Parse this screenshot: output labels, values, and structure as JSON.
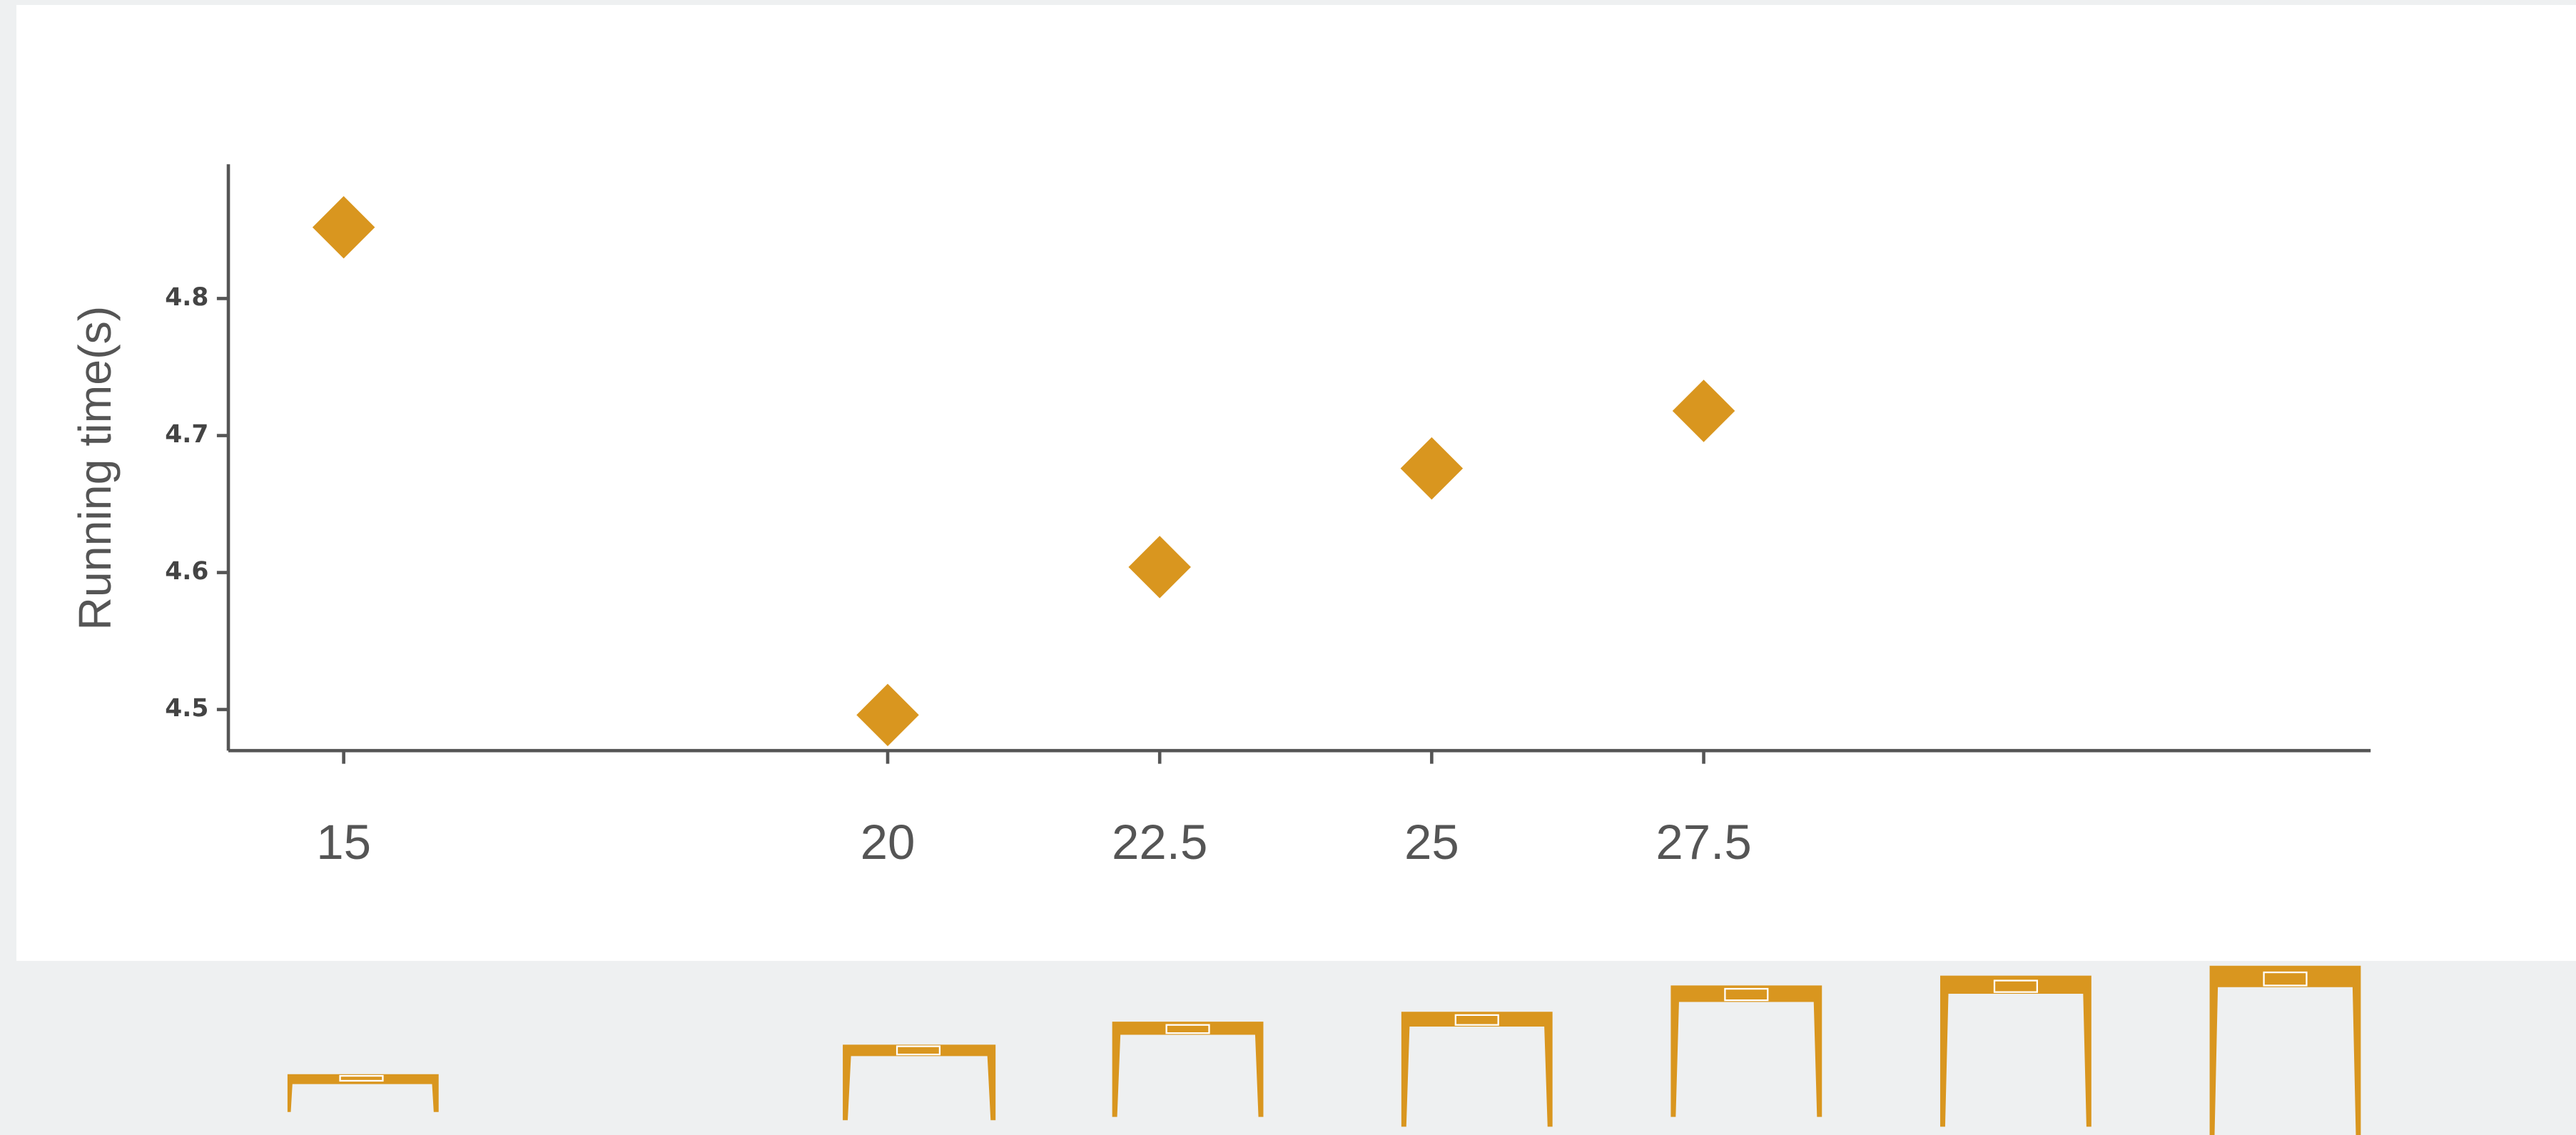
{
  "chart_data": {
    "type": "scatter",
    "y_label": "Running time(s)",
    "x": [
      15,
      20,
      22.5,
      25,
      27.5
    ],
    "values": [
      4.852,
      4.496,
      4.604,
      4.676,
      4.718
    ],
    "color": "#d9961f",
    "xlim": [
      13.94,
      33.63
    ],
    "xticks": [
      15,
      20,
      22.5,
      25,
      27.5
    ],
    "ylim": [
      4.47,
      4.898
    ],
    "yticks": [
      4.5,
      4.6,
      4.7,
      4.8
    ]
  }
}
